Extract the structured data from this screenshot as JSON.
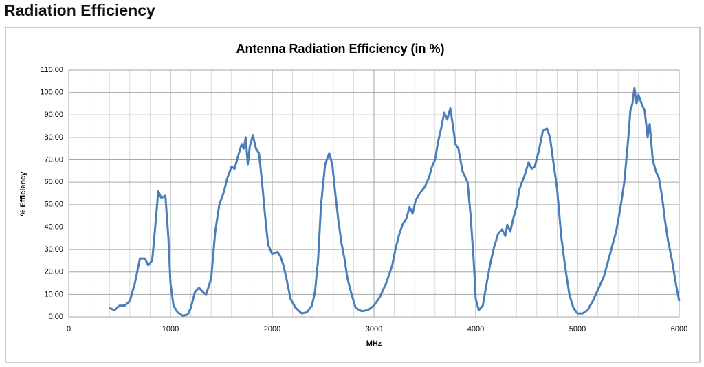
{
  "header": {
    "title": "Radiation Efficiency"
  },
  "chart_data": {
    "type": "line",
    "title": "Antenna Radiation Efficiency (in %)",
    "xlabel": "MHz",
    "ylabel": "% Efficiency",
    "color": "#4a7ebb",
    "grid": true,
    "xlim": [
      0,
      6000
    ],
    "xticks": [
      0,
      1000,
      2000,
      3000,
      4000,
      5000,
      6000
    ],
    "ylim": [
      0,
      110
    ],
    "yticks": [
      {
        "value": 0,
        "label": "0.00"
      },
      {
        "value": 10,
        "label": "10.00"
      },
      {
        "value": 20,
        "label": "20.00"
      },
      {
        "value": 30,
        "label": "30.00"
      },
      {
        "value": 40,
        "label": "40.00"
      },
      {
        "value": 50,
        "label": "50.00"
      },
      {
        "value": 60,
        "label": "60.00"
      },
      {
        "value": 70,
        "label": "70.00"
      },
      {
        "value": 80,
        "label": "80.00"
      },
      {
        "value": 90,
        "label": "90.00"
      },
      {
        "value": 100,
        "label": "100.00"
      },
      {
        "value": 110,
        "label": "110.00"
      }
    ],
    "x": [
      400,
      450,
      500,
      550,
      600,
      650,
      700,
      750,
      780,
      820,
      850,
      880,
      910,
      950,
      980,
      1000,
      1030,
      1070,
      1120,
      1170,
      1200,
      1240,
      1280,
      1320,
      1350,
      1400,
      1440,
      1480,
      1520,
      1560,
      1600,
      1630,
      1660,
      1700,
      1720,
      1740,
      1760,
      1780,
      1810,
      1840,
      1870,
      1900,
      1930,
      1960,
      2000,
      2050,
      2080,
      2110,
      2140,
      2180,
      2230,
      2290,
      2340,
      2390,
      2420,
      2450,
      2480,
      2520,
      2560,
      2590,
      2620,
      2650,
      2680,
      2710,
      2740,
      2780,
      2820,
      2880,
      2940,
      3000,
      3060,
      3120,
      3180,
      3210,
      3250,
      3280,
      3320,
      3350,
      3380,
      3410,
      3450,
      3500,
      3540,
      3570,
      3600,
      3630,
      3660,
      3690,
      3720,
      3750,
      3780,
      3800,
      3830,
      3870,
      3920,
      3950,
      3980,
      4000,
      4030,
      4070,
      4100,
      4140,
      4180,
      4220,
      4260,
      4290,
      4310,
      4340,
      4370,
      4400,
      4430,
      4480,
      4520,
      4550,
      4580,
      4620,
      4660,
      4700,
      4730,
      4760,
      4800,
      4840,
      4880,
      4920,
      4960,
      5000,
      5050,
      5100,
      5150,
      5200,
      5260,
      5320,
      5380,
      5420,
      5460,
      5500,
      5520,
      5540,
      5560,
      5580,
      5600,
      5630,
      5660,
      5690,
      5710,
      5740,
      5770,
      5800,
      5830,
      5860,
      5890,
      5930,
      5970,
      6000
    ],
    "values": [
      4,
      3,
      5,
      5,
      7,
      15,
      26,
      26,
      23,
      25,
      40,
      56,
      53,
      54,
      35,
      15,
      5,
      2,
      0.5,
      1,
      4,
      11,
      13,
      11,
      10,
      17,
      38,
      50,
      55,
      62,
      67,
      66,
      71,
      77,
      75,
      80,
      68,
      76,
      81,
      75,
      73,
      60,
      45,
      32,
      28,
      29,
      27,
      23,
      17,
      8,
      4,
      1.5,
      2,
      5,
      11,
      25,
      50,
      68,
      73,
      68,
      55,
      43,
      33,
      26,
      17,
      10,
      4,
      2.5,
      3,
      5,
      9,
      15,
      23,
      30,
      37,
      41,
      44,
      49,
      46,
      52,
      55,
      58,
      62,
      67,
      70,
      78,
      84,
      91,
      88,
      93,
      84,
      77,
      75,
      65,
      60,
      45,
      25,
      8,
      3,
      5,
      13,
      23,
      31,
      37,
      39,
      36,
      41,
      38,
      44,
      49,
      57,
      63,
      69,
      66,
      67,
      74,
      83,
      84,
      80,
      70,
      57,
      36,
      22,
      10,
      4,
      1.5,
      1.5,
      3,
      7,
      12,
      18,
      28,
      38,
      48,
      60,
      80,
      92,
      95,
      102,
      95,
      99,
      95,
      92,
      80,
      86,
      70,
      65,
      62,
      54,
      43,
      34,
      25,
      14,
      7
    ]
  }
}
